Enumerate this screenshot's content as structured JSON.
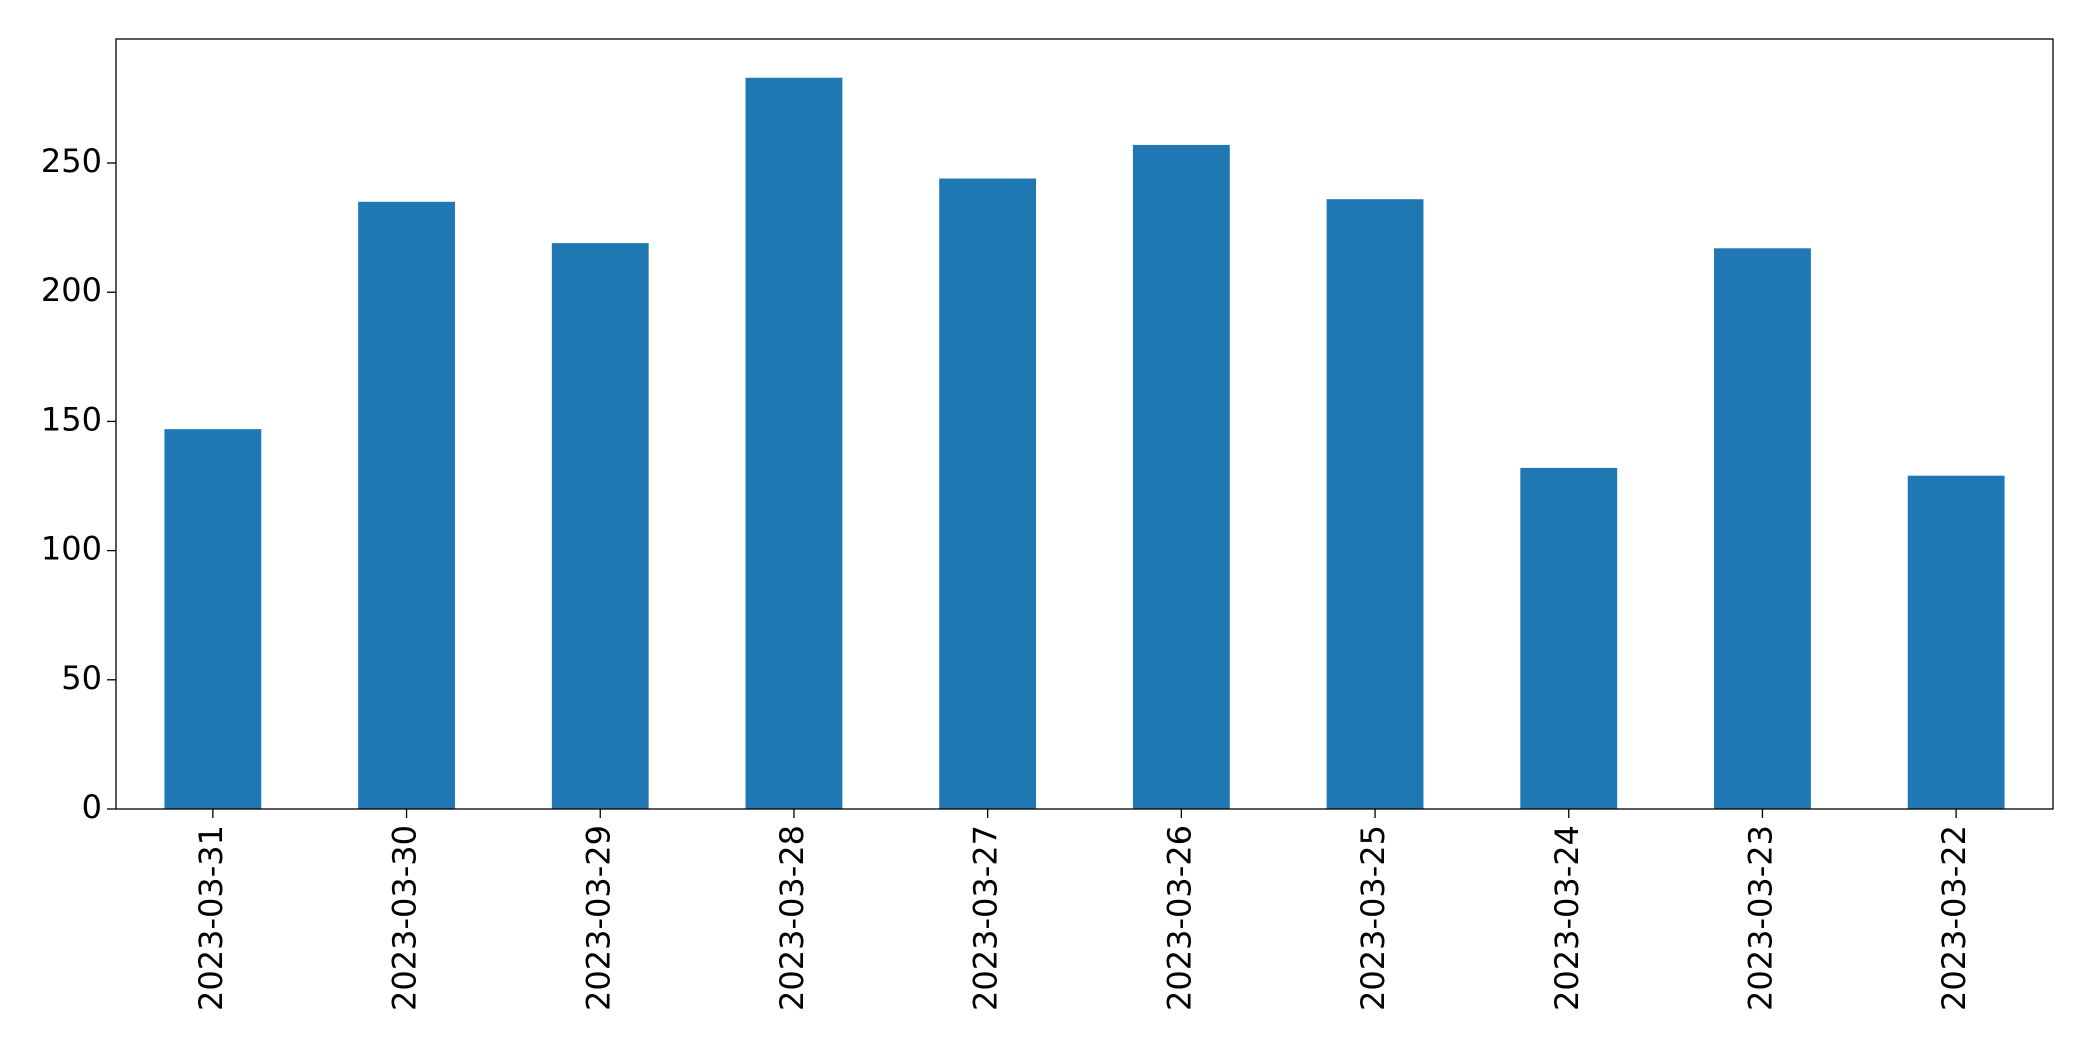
{
  "chart_data": {
    "type": "bar",
    "categories": [
      "2023-03-31",
      "2023-03-30",
      "2023-03-29",
      "2023-03-28",
      "2023-03-27",
      "2023-03-26",
      "2023-03-25",
      "2023-03-24",
      "2023-03-23",
      "2023-03-22"
    ],
    "values": [
      147,
      235,
      219,
      283,
      244,
      257,
      236,
      132,
      217,
      129
    ],
    "color": "#1f77b4",
    "ylim": [
      0,
      298
    ],
    "yticks": [
      0,
      50,
      100,
      150,
      200,
      250
    ],
    "grid": false
  }
}
